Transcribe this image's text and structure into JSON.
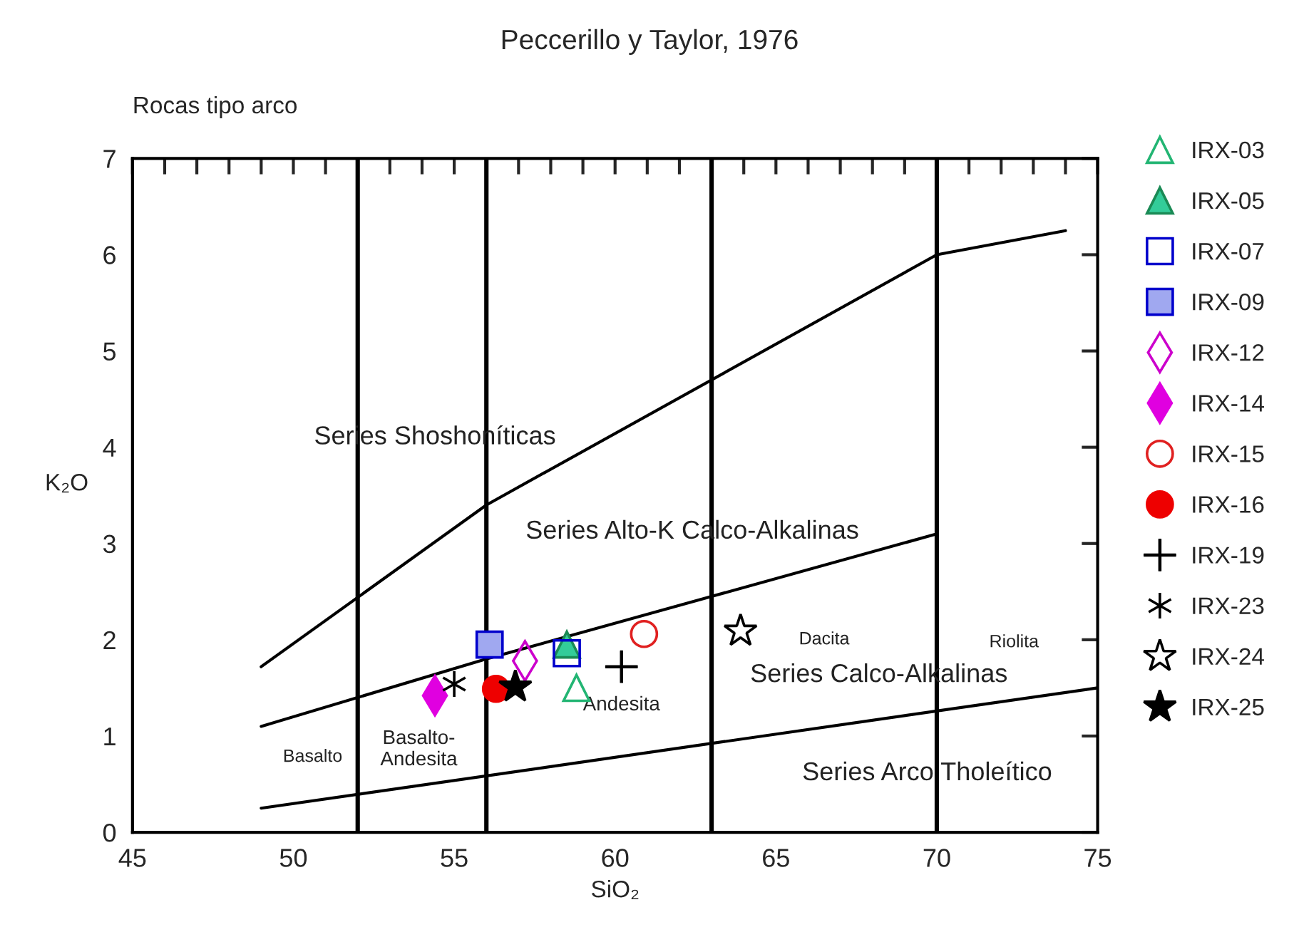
{
  "chart_data": {
    "type": "scatter",
    "title": "Peccerillo y Taylor, 1976",
    "subtitle": "Rocas tipo arco",
    "xlabel": "SiO₂",
    "ylabel": "K₂O",
    "xlim": [
      45,
      75
    ],
    "ylim": [
      0,
      7
    ],
    "xticks": [
      45,
      {
        "value": 46,
        "label": null
      },
      {
        "value": 47,
        "label": null
      },
      {
        "value": 48,
        "label": null
      },
      {
        "value": 49,
        "label": null
      },
      50,
      {
        "value": 51,
        "label": null
      },
      {
        "value": 52,
        "label": null
      },
      {
        "value": 53,
        "label": null
      },
      {
        "value": 54,
        "label": null
      },
      55,
      {
        "value": 56,
        "label": null
      },
      {
        "value": 57,
        "label": null
      },
      {
        "value": 58,
        "label": null
      },
      {
        "value": 59,
        "label": null
      },
      60,
      {
        "value": 61,
        "label": null
      },
      {
        "value": 62,
        "label": null
      },
      {
        "value": 63,
        "label": null
      },
      {
        "value": 64,
        "label": null
      },
      65,
      {
        "value": 66,
        "label": null
      },
      {
        "value": 67,
        "label": null
      },
      {
        "value": 68,
        "label": null
      },
      {
        "value": 69,
        "label": null
      },
      70,
      {
        "value": 71,
        "label": null
      },
      {
        "value": 72,
        "label": null
      },
      {
        "value": 73,
        "label": null
      },
      {
        "value": 74,
        "label": null
      },
      75
    ],
    "yticks": [
      0,
      1,
      2,
      3,
      4,
      5,
      6,
      7
    ],
    "grid": false,
    "legend": "right",
    "ref_lines": [
      {
        "axis": "x",
        "value": 52,
        "color": "#000000"
      },
      {
        "axis": "x",
        "value": 56,
        "color": "#000000"
      },
      {
        "axis": "x",
        "value": 63,
        "color": "#000000"
      },
      {
        "axis": "x",
        "value": 70,
        "color": "#000000"
      }
    ],
    "series": [
      {
        "type": "line",
        "color": "#000000",
        "x": [
          49,
          56,
          70,
          74
        ],
        "values": [
          1.72,
          3.4,
          6.0,
          6.25
        ],
        "marker": "none"
      },
      {
        "type": "line",
        "color": "#000000",
        "x": [
          49,
          56,
          63,
          70
        ],
        "values": [
          1.1,
          1.8,
          2.45,
          3.1
        ],
        "marker": "none"
      },
      {
        "type": "line",
        "color": "#000000",
        "x": [
          49,
          75
        ],
        "values": [
          0.25,
          1.5
        ],
        "marker": "none"
      },
      {
        "name": "IRX-03",
        "color": "#22b573",
        "marker": "triangle",
        "x": [
          58.8
        ],
        "values": [
          1.5
        ]
      },
      {
        "name": "IRX-05",
        "color": "#1a8a55",
        "colors": [
          "#33cc99"
        ],
        "marker": "triangle",
        "x": [
          58.5
        ],
        "values": [
          1.95
        ]
      },
      {
        "name": "IRX-07",
        "color": "#0000cc",
        "marker": "square",
        "x": [
          58.5
        ],
        "values": [
          1.86
        ]
      },
      {
        "name": "IRX-09",
        "color": "#0000cc",
        "colors": [
          "#a0a8f0"
        ],
        "marker": "square",
        "x": [
          56.1
        ],
        "values": [
          1.95
        ]
      },
      {
        "name": "IRX-12",
        "color": "#cc00cc",
        "marker": "diamond",
        "x": [
          57.2
        ],
        "values": [
          1.78
        ]
      },
      {
        "name": "IRX-14",
        "color": "#e000e0",
        "colors": [
          "#e000e0"
        ],
        "marker": "diamond",
        "x": [
          54.4
        ],
        "values": [
          1.42
        ]
      },
      {
        "name": "IRX-15",
        "color": "#e02020",
        "marker": "circle",
        "x": [
          60.9
        ],
        "values": [
          2.06
        ]
      },
      {
        "name": "IRX-16",
        "color": "#ee0000",
        "colors": [
          "#ee0000"
        ],
        "marker": "circle",
        "x": [
          56.3
        ],
        "values": [
          1.49
        ]
      },
      {
        "name": "IRX-19",
        "color": "#000000",
        "x": [
          60.2
        ],
        "values": [
          1.72
        ]
      },
      {
        "name": "IRX-23",
        "color": "#000000",
        "marker": "cross",
        "x": [
          55.0
        ],
        "values": [
          1.54
        ]
      },
      {
        "name": "IRX-24",
        "color": "#000000",
        "marker": "star",
        "x": [
          63.9
        ],
        "values": [
          2.09
        ]
      },
      {
        "name": "IRX-25",
        "color": "#000000",
        "colors": [
          "#000000"
        ],
        "marker": "star",
        "x": [
          56.9
        ],
        "values": [
          1.51
        ]
      }
    ],
    "annotations": [
      "Series Shoshoníticas",
      "Series Alto-K Calco-Alkalinas",
      "Series Calco-Alkalinas",
      "Series Arco Tholeítico",
      "Basalto",
      "Basalto-\nAndesita",
      "Andesita",
      "Dacita",
      "Riolita"
    ]
  }
}
